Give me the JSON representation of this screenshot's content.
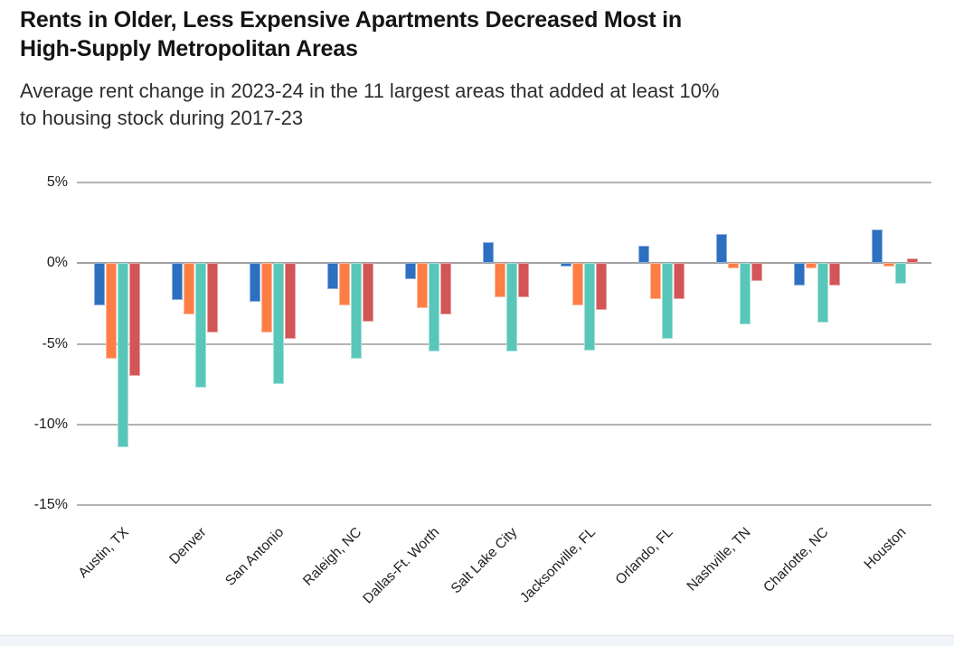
{
  "header": {
    "title_lines": [
      "Rents in Older, Less Expensive Apartments Decreased Most in",
      "High-Supply Metropolitan Areas"
    ],
    "subtitle_lines": [
      "Average rent change in 2023-24 in the 11 largest areas that added at least 10%",
      "to housing stock during 2017-23"
    ]
  },
  "chart_data": {
    "type": "bar",
    "title": "Rents in Older, Less Expensive Apartments Decreased Most in High-Supply Metropolitan Areas",
    "subtitle": "Average rent change in 2023-24 in the 11 largest areas that added at least 10% to housing stock during 2017-23",
    "categories": [
      "Austin, TX",
      "Denver",
      "San Antonio",
      "Raleigh, NC",
      "Dallas-Ft. Worth",
      "Salt Lake City",
      "Jacksonville, FL",
      "Orlando, FL",
      "Nashville, TN",
      "Charlotte, NC",
      "Houston"
    ],
    "series": [
      {
        "name": "blue",
        "color": "#2d6fc1",
        "values": [
          -2.6,
          -2.3,
          -2.4,
          -1.6,
          -1.0,
          1.3,
          -0.2,
          1.1,
          1.8,
          -1.4,
          2.1
        ]
      },
      {
        "name": "orange",
        "color": "#fd7e45",
        "values": [
          -5.9,
          -3.2,
          -4.3,
          -2.6,
          -2.8,
          -2.1,
          -2.6,
          -2.2,
          -0.3,
          -0.3,
          -0.2
        ]
      },
      {
        "name": "teal",
        "color": "#58c7ba",
        "values": [
          -11.4,
          -7.7,
          -7.5,
          -5.9,
          -5.5,
          -5.5,
          -5.4,
          -4.7,
          -3.8,
          -3.7,
          -1.3
        ]
      },
      {
        "name": "red",
        "color": "#d25558",
        "values": [
          -7.0,
          -4.3,
          -4.7,
          -3.6,
          -3.2,
          -2.1,
          -2.9,
          -2.2,
          -1.1,
          -1.4,
          0.3
        ]
      }
    ],
    "ylim": [
      -15,
      5
    ],
    "yticks": [
      5,
      0,
      -5,
      -10,
      -15
    ],
    "ytick_labels": [
      "5%",
      "0%",
      "-5%",
      "-10%",
      "-15%"
    ],
    "grid": true,
    "legend": "none",
    "xlabel": "",
    "ylabel": ""
  }
}
